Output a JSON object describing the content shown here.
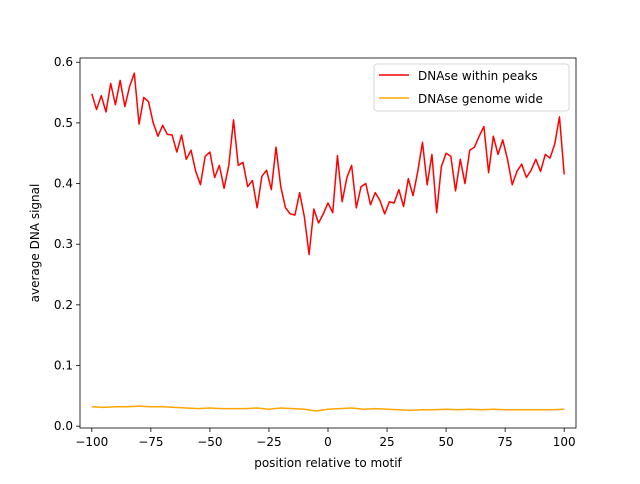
{
  "chart_data": {
    "type": "line",
    "title": "",
    "xlabel": "position relative to motif",
    "ylabel": "average DNA signal",
    "xlim": [
      -105,
      105
    ],
    "ylim": [
      -0.003,
      0.607
    ],
    "xticks": [
      -100,
      -75,
      -50,
      -25,
      0,
      25,
      50,
      75,
      100
    ],
    "xtick_labels": [
      "−100",
      "−75",
      "−50",
      "−25",
      "0",
      "25",
      "50",
      "75",
      "100"
    ],
    "yticks": [
      0.0,
      0.1,
      0.2,
      0.3,
      0.4,
      0.5,
      0.6
    ],
    "ytick_labels": [
      "0.0",
      "0.1",
      "0.2",
      "0.3",
      "0.4",
      "0.5",
      "0.6"
    ],
    "grid": false,
    "legend_position": "top-right",
    "series": [
      {
        "name": "DNAse within peaks",
        "color": "#ff0000",
        "x": [
          -100,
          -98,
          -96,
          -94,
          -92,
          -90,
          -88,
          -86,
          -84,
          -82,
          -80,
          -78,
          -76,
          -74,
          -72,
          -70,
          -68,
          -66,
          -64,
          -62,
          -60,
          -58,
          -56,
          -54,
          -52,
          -50,
          -48,
          -46,
          -44,
          -42,
          -40,
          -38,
          -36,
          -34,
          -32,
          -30,
          -28,
          -26,
          -24,
          -22,
          -20,
          -18,
          -16,
          -14,
          -12,
          -10,
          -8,
          -6,
          -4,
          -2,
          0,
          2,
          4,
          6,
          8,
          10,
          12,
          14,
          16,
          18,
          20,
          22,
          24,
          26,
          28,
          30,
          32,
          34,
          36,
          38,
          40,
          42,
          44,
          46,
          48,
          50,
          52,
          54,
          56,
          58,
          60,
          62,
          64,
          66,
          68,
          70,
          72,
          74,
          76,
          78,
          80,
          82,
          84,
          86,
          88,
          90,
          92,
          94,
          96,
          98,
          100
        ],
        "values": [
          0.548,
          0.522,
          0.545,
          0.518,
          0.565,
          0.53,
          0.57,
          0.527,
          0.56,
          0.582,
          0.498,
          0.542,
          0.535,
          0.5,
          0.478,
          0.496,
          0.481,
          0.48,
          0.452,
          0.48,
          0.44,
          0.455,
          0.42,
          0.398,
          0.445,
          0.452,
          0.41,
          0.43,
          0.392,
          0.43,
          0.505,
          0.43,
          0.435,
          0.395,
          0.405,
          0.36,
          0.412,
          0.422,
          0.39,
          0.46,
          0.395,
          0.36,
          0.35,
          0.348,
          0.385,
          0.345,
          0.283,
          0.358,
          0.335,
          0.35,
          0.368,
          0.352,
          0.446,
          0.37,
          0.41,
          0.43,
          0.36,
          0.395,
          0.4,
          0.365,
          0.385,
          0.372,
          0.35,
          0.37,
          0.368,
          0.39,
          0.362,
          0.408,
          0.38,
          0.42,
          0.468,
          0.398,
          0.448,
          0.352,
          0.428,
          0.45,
          0.445,
          0.388,
          0.44,
          0.4,
          0.455,
          0.46,
          0.478,
          0.494,
          0.418,
          0.478,
          0.448,
          0.472,
          0.44,
          0.398,
          0.42,
          0.432,
          0.41,
          0.422,
          0.44,
          0.42,
          0.448,
          0.442,
          0.465,
          0.51,
          0.415
        ]
      },
      {
        "name": "DNAse genome wide",
        "color": "#ffa500",
        "x": [
          -100,
          -95,
          -90,
          -85,
          -80,
          -75,
          -70,
          -65,
          -60,
          -55,
          -50,
          -45,
          -40,
          -35,
          -30,
          -25,
          -20,
          -15,
          -10,
          -5,
          0,
          5,
          10,
          15,
          20,
          25,
          30,
          35,
          40,
          45,
          50,
          55,
          60,
          65,
          70,
          75,
          80,
          85,
          90,
          95,
          100
        ],
        "values": [
          0.032,
          0.031,
          0.032,
          0.032,
          0.033,
          0.032,
          0.032,
          0.031,
          0.03,
          0.029,
          0.03,
          0.029,
          0.029,
          0.029,
          0.03,
          0.028,
          0.03,
          0.029,
          0.028,
          0.025,
          0.028,
          0.029,
          0.03,
          0.028,
          0.029,
          0.028,
          0.027,
          0.026,
          0.027,
          0.027,
          0.028,
          0.027,
          0.028,
          0.027,
          0.028,
          0.027,
          0.027,
          0.027,
          0.027,
          0.027,
          0.028
        ]
      }
    ]
  }
}
